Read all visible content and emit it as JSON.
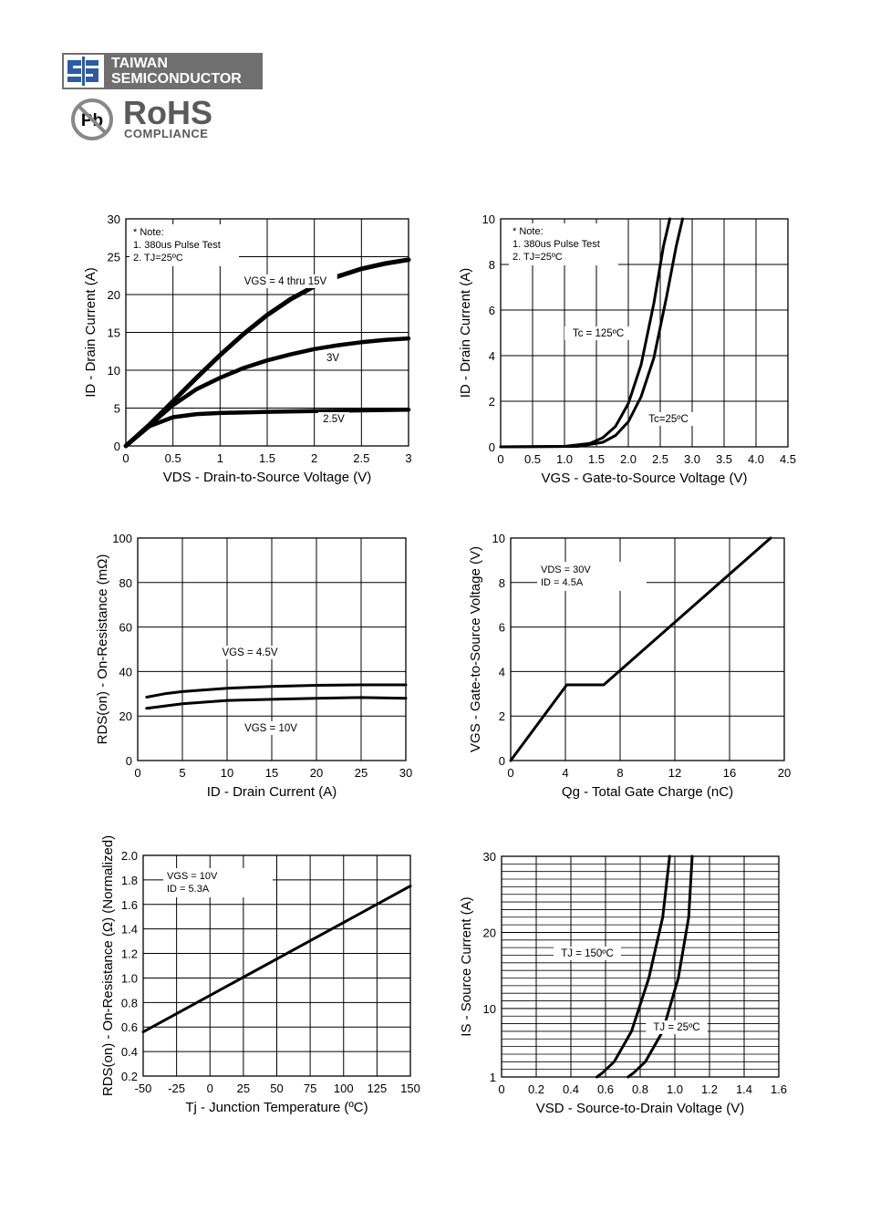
{
  "header": {
    "brand_line1": "TAIWAN",
    "brand_line2": "SEMICONDUCTOR",
    "pb_mark": "Pb",
    "rohs_title": "RoHS",
    "rohs_subtitle": "COMPLIANCE"
  },
  "chart_data": [
    {
      "type": "line",
      "xlabel": "VDS - Drain-to-Source Voltage (V)",
      "ylabel": "ID - Drain Current (A)",
      "xlim": [
        0,
        3
      ],
      "ylim": [
        0,
        30
      ],
      "xticks": [
        "0",
        "0.5",
        "1",
        "1.5",
        "2",
        "2.5",
        "3"
      ],
      "yticks": [
        "0",
        "5",
        "10",
        "15",
        "20",
        "25",
        "30"
      ],
      "notes": [
        "* Note:",
        "1. 380us Pulse Test",
        "2. TJ=25ºC"
      ],
      "series": [
        {
          "name": "VGS = 4 thru 15V",
          "x": [
            0,
            0.25,
            0.5,
            0.75,
            1,
            1.25,
            1.5,
            1.75,
            2,
            2.25,
            2.5,
            2.75,
            3
          ],
          "values": [
            0,
            2.8,
            5.9,
            9.0,
            12.0,
            14.8,
            17.3,
            19.4,
            21.1,
            22.4,
            23.4,
            24.1,
            24.6
          ]
        },
        {
          "name": "3V",
          "x": [
            0,
            0.25,
            0.5,
            0.75,
            1,
            1.25,
            1.5,
            1.75,
            2,
            2.25,
            2.5,
            2.75,
            3
          ],
          "values": [
            0,
            2.7,
            5.4,
            7.5,
            9.0,
            10.3,
            11.3,
            12.1,
            12.8,
            13.3,
            13.7,
            14.0,
            14.2
          ]
        },
        {
          "name": "2.5V",
          "x": [
            0,
            0.25,
            0.5,
            0.75,
            1,
            1.5,
            2,
            2.5,
            3
          ],
          "values": [
            0,
            2.6,
            3.8,
            4.2,
            4.35,
            4.5,
            4.6,
            4.7,
            4.8
          ]
        }
      ]
    },
    {
      "type": "line",
      "xlabel": "VGS - Gate-to-Source Voltage (V)",
      "ylabel": "ID - Drain Current (A)",
      "xlim": [
        0,
        4.5
      ],
      "ylim": [
        0,
        10
      ],
      "xticks": [
        "0",
        "0.5",
        "1.0",
        "1.5",
        "2.0",
        "2.5",
        "3.0",
        "3.5",
        "4.0",
        "4.5"
      ],
      "yticks": [
        "0",
        "2",
        "4",
        "6",
        "8",
        "10"
      ],
      "notes": [
        "* Note:",
        "1. 380us Pulse Test",
        "2. TJ=25ºC"
      ],
      "series": [
        {
          "name": "Tc = 125ºC",
          "x": [
            0,
            1.0,
            1.4,
            1.6,
            1.8,
            2.0,
            2.2,
            2.4,
            2.55,
            2.65
          ],
          "values": [
            0,
            0.02,
            0.15,
            0.4,
            0.9,
            1.9,
            3.6,
            6.3,
            8.8,
            10
          ]
        },
        {
          "name": "Tc=25ºC",
          "x": [
            0,
            1.2,
            1.6,
            1.8,
            2.0,
            2.2,
            2.4,
            2.6,
            2.75,
            2.85
          ],
          "values": [
            0,
            0.02,
            0.2,
            0.5,
            1.1,
            2.2,
            3.9,
            6.6,
            8.8,
            10
          ]
        }
      ]
    },
    {
      "type": "line",
      "xlabel": "ID - Drain Current (A)",
      "ylabel": "RDS(on) - On-Resistance (mΩ)",
      "xlim": [
        0,
        30
      ],
      "ylim": [
        0,
        100
      ],
      "xticks": [
        "0",
        "5",
        "10",
        "15",
        "20",
        "25",
        "30"
      ],
      "yticks": [
        "0",
        "20",
        "40",
        "60",
        "80",
        "100"
      ],
      "series": [
        {
          "name": "VGS = 4.5V",
          "x": [
            1,
            3,
            5,
            10,
            15,
            20,
            25,
            30
          ],
          "values": [
            28.5,
            30,
            31,
            32.5,
            33.3,
            33.8,
            34,
            34
          ]
        },
        {
          "name": "VGS = 10V",
          "x": [
            1,
            3,
            5,
            10,
            15,
            20,
            25,
            30
          ],
          "values": [
            23.5,
            24.5,
            25.5,
            27,
            27.5,
            28,
            28.3,
            28
          ]
        }
      ]
    },
    {
      "type": "line",
      "xlabel": "Qg - Total Gate Charge (nC)",
      "ylabel": "VGS - Gate-to-Source Voltage (V)",
      "xlim": [
        0,
        20
      ],
      "ylim": [
        0,
        10
      ],
      "xticks": [
        "0",
        "4",
        "8",
        "12",
        "16",
        "20"
      ],
      "yticks": [
        "0",
        "2",
        "4",
        "6",
        "8",
        "10"
      ],
      "notes": [
        "VDS = 30V",
        "ID = 4.5A"
      ],
      "series": [
        {
          "name": "",
          "x": [
            0,
            4.1,
            6.8,
            19
          ],
          "values": [
            0,
            3.4,
            3.4,
            10
          ]
        }
      ]
    },
    {
      "type": "line",
      "xlabel": "Tj - Junction Temperature (ºC)",
      "ylabel": "RDS(on) - On-Resistance (Ω) (Normalized)",
      "xlim": [
        -50,
        150
      ],
      "ylim": [
        0.2,
        2.0
      ],
      "xticks": [
        "-50",
        "-25",
        "0",
        "25",
        "50",
        "75",
        "100",
        "125",
        "150"
      ],
      "yticks": [
        "0.2",
        "0.4",
        "0.6",
        "0.8",
        "1.0",
        "1.2",
        "1.4",
        "1.6",
        "1.8",
        "2.0"
      ],
      "notes": [
        "VGS = 10V",
        "ID = 5.3A"
      ],
      "series": [
        {
          "name": "",
          "x": [
            -50,
            150
          ],
          "values": [
            0.56,
            1.75
          ]
        }
      ]
    },
    {
      "type": "line",
      "xlabel": "VSD - Source-to-Drain Voltage (V)",
      "ylabel": "IS - Source Current (A)",
      "xscale": "log",
      "xlim": [
        0,
        1.6
      ],
      "ylim": [
        1,
        30
      ],
      "xticks": [
        "0",
        "0.2",
        "0.4",
        "0.6",
        "0.8",
        "1.0",
        "1.2",
        "1.4",
        "1.6"
      ],
      "yticks": [
        "1",
        "10",
        "20",
        "30"
      ],
      "series": [
        {
          "name": "TJ = 150ºC",
          "x": [
            0.55,
            0.58,
            0.65,
            0.75,
            0.85,
            0.93,
            0.97
          ],
          "values": [
            1,
            1.5,
            3,
            7,
            14,
            22,
            30
          ]
        },
        {
          "name": "TJ = 25ºC",
          "x": [
            0.73,
            0.76,
            0.83,
            0.93,
            1.02,
            1.08,
            1.1
          ],
          "values": [
            1,
            1.5,
            3,
            7,
            14,
            22,
            30
          ]
        }
      ]
    }
  ]
}
